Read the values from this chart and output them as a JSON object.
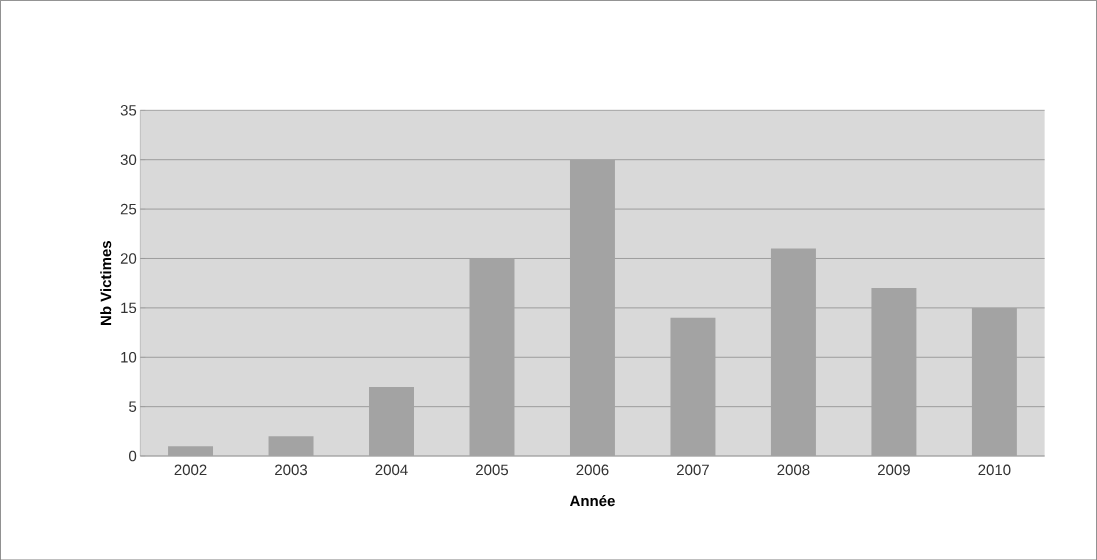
{
  "chart_data": {
    "type": "bar",
    "xlabel": "Année",
    "ylabel": "Nb Victimes",
    "categories": [
      "2002",
      "2003",
      "2004",
      "2005",
      "2006",
      "2007",
      "2008",
      "2009",
      "2010"
    ],
    "values": [
      1,
      2,
      7,
      20,
      30,
      14,
      21,
      17,
      15
    ],
    "color": "#a3a3a3",
    "ylim": [
      0,
      35
    ],
    "yticks": [
      0,
      5,
      10,
      15,
      20,
      25,
      30,
      35
    ],
    "grid": "y"
  }
}
